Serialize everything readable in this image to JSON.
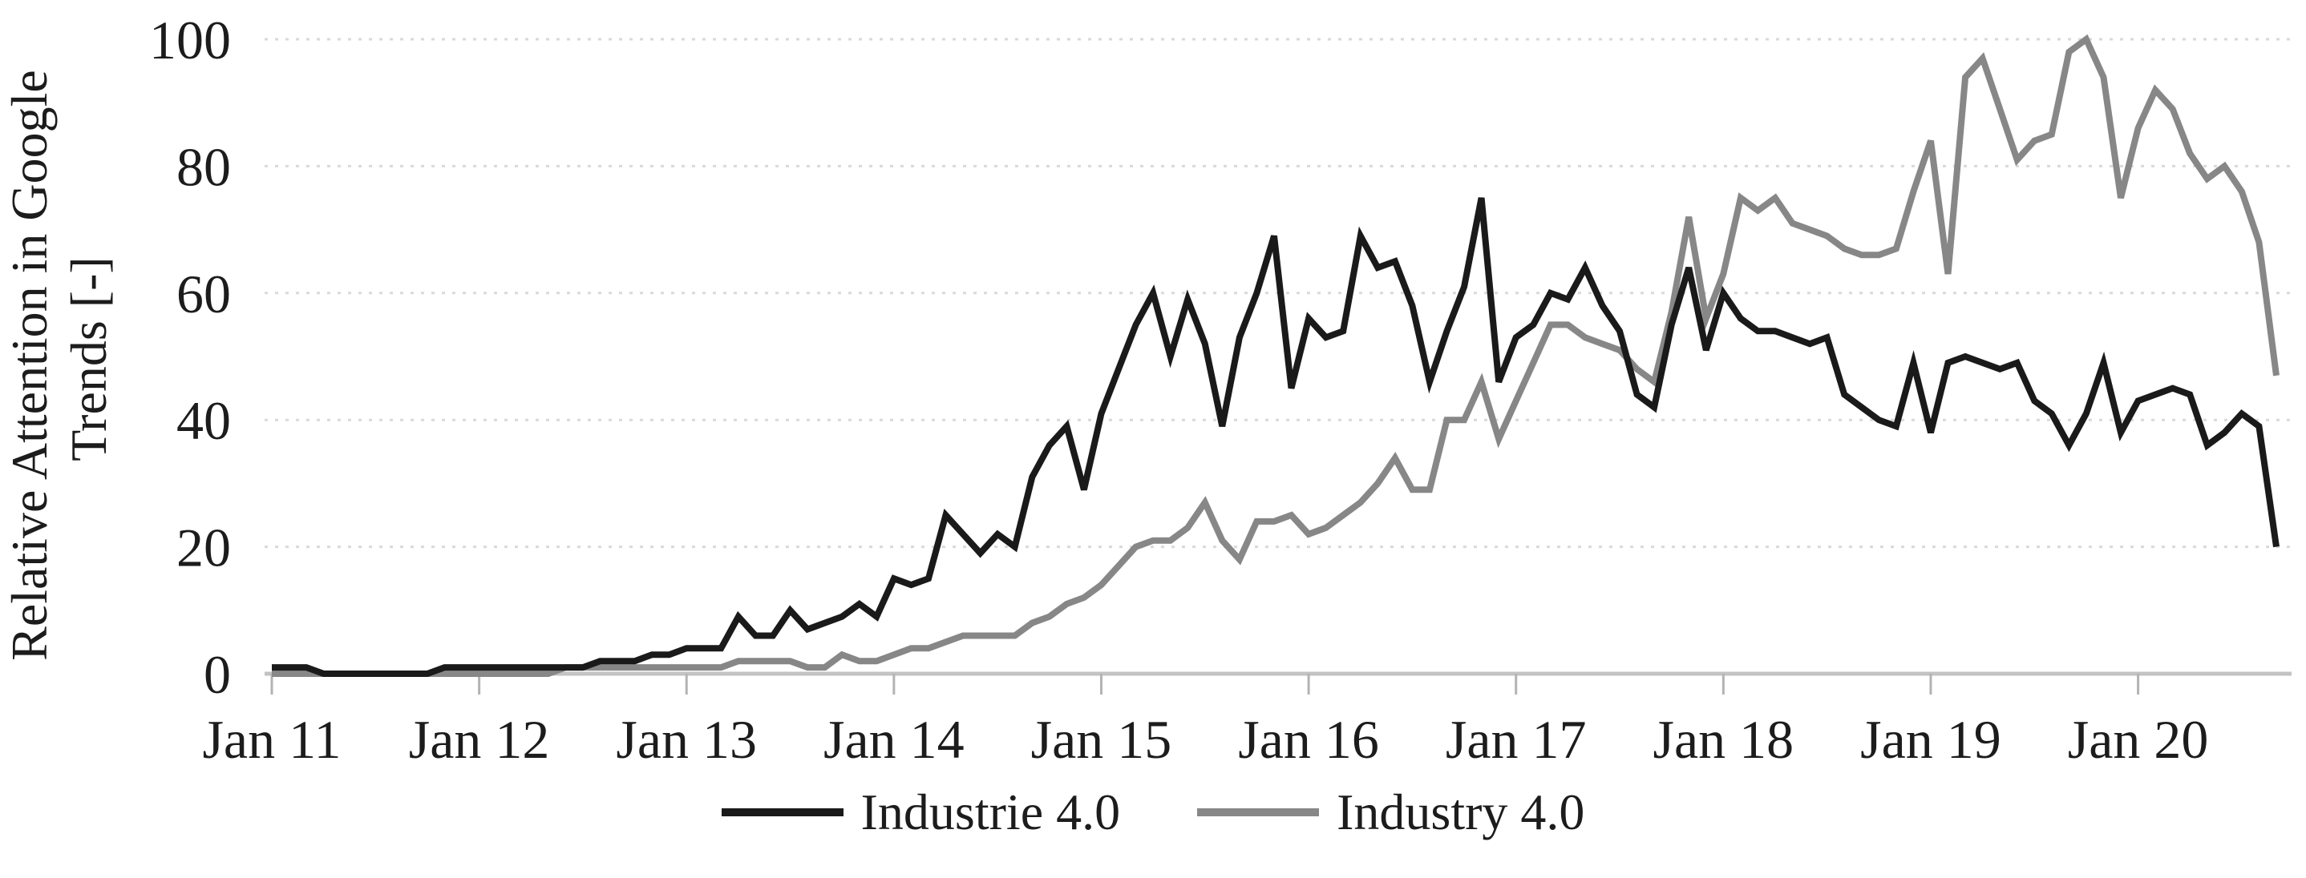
{
  "chart_data": {
    "type": "line",
    "title": "",
    "ylabel_line1": "Relative Attention in Google",
    "ylabel_line2": "Trends [-]",
    "xlabel": "",
    "x_tick_labels": [
      "Jan 11",
      "Jan 12",
      "Jan 13",
      "Jan 14",
      "Jan 15",
      "Jan 16",
      "Jan 17",
      "Jan 18",
      "Jan 19",
      "Jan 20"
    ],
    "y_ticks": [
      0,
      20,
      40,
      60,
      80,
      100
    ],
    "ylim": [
      0,
      100
    ],
    "x_start": "Jan 2011",
    "x_end": "Sep 2020",
    "frequency": "monthly",
    "grid": "horizontal-dotted",
    "legend_position": "bottom-center",
    "gridline_color": "#d9d9d9",
    "axis_line_color": "#c3c3c3",
    "tick_mark_color": "#b3b3b3",
    "series": [
      {
        "name": "Industrie 4.0",
        "color": "#1a1a1a",
        "stroke_width": 8,
        "values": [
          1,
          1,
          1,
          0,
          0,
          0,
          0,
          0,
          0,
          0,
          1,
          1,
          1,
          1,
          1,
          1,
          1,
          1,
          1,
          2,
          2,
          2,
          3,
          3,
          4,
          4,
          4,
          9,
          6,
          6,
          10,
          7,
          8,
          9,
          11,
          9,
          15,
          14,
          15,
          25,
          22,
          19,
          22,
          20,
          31,
          36,
          39,
          29,
          41,
          48,
          55,
          60,
          50,
          59,
          52,
          39,
          53,
          60,
          69,
          45,
          56,
          53,
          54,
          69,
          64,
          65,
          58,
          46,
          54,
          61,
          75,
          46,
          53,
          55,
          60,
          59,
          64,
          58,
          54,
          44,
          42,
          55,
          64,
          51,
          60,
          56,
          54,
          54,
          53,
          52,
          53,
          44,
          42,
          40,
          39,
          49,
          38,
          49,
          50,
          49,
          48,
          49,
          43,
          41,
          36,
          41,
          49,
          38,
          43,
          44,
          45,
          44,
          36,
          38,
          41,
          39,
          20
        ]
      },
      {
        "name": "Industry 4.0",
        "color": "#878787",
        "stroke_width": 8,
        "values": [
          0,
          0,
          0,
          0,
          0,
          0,
          0,
          0,
          0,
          0,
          0,
          0,
          0,
          0,
          0,
          0,
          0,
          1,
          1,
          1,
          1,
          1,
          1,
          1,
          1,
          1,
          1,
          2,
          2,
          2,
          2,
          1,
          1,
          3,
          2,
          2,
          3,
          4,
          4,
          5,
          6,
          6,
          6,
          6,
          8,
          9,
          11,
          12,
          14,
          17,
          20,
          21,
          21,
          23,
          27,
          21,
          18,
          24,
          24,
          25,
          22,
          23,
          25,
          27,
          30,
          34,
          29,
          29,
          40,
          40,
          46,
          37,
          43,
          49,
          55,
          55,
          53,
          52,
          51,
          48,
          46,
          57,
          72,
          56,
          63,
          75,
          73,
          75,
          71,
          70,
          69,
          67,
          66,
          66,
          67,
          76,
          84,
          63,
          94,
          97,
          89,
          81,
          84,
          85,
          98,
          100,
          94,
          75,
          86,
          92,
          89,
          82,
          78,
          80,
          76,
          68,
          47
        ]
      }
    ]
  }
}
